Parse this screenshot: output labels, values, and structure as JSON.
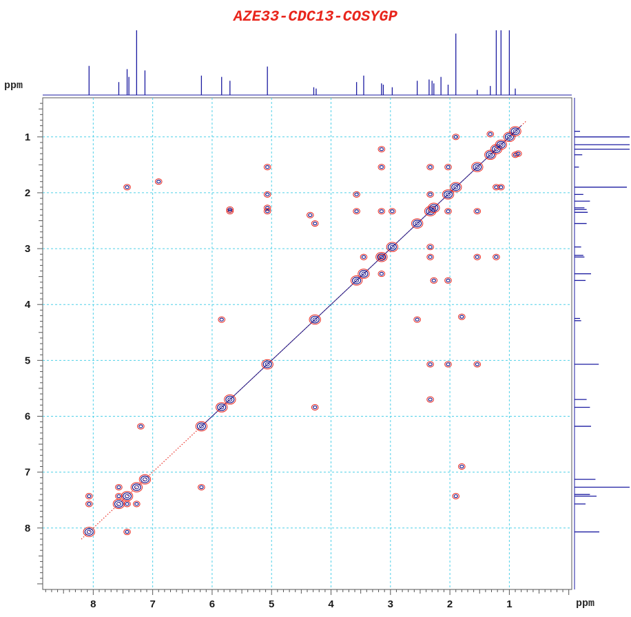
{
  "chart_data": {
    "type": "scatter",
    "title": "AZE33-CDC13-COSYGP",
    "xlabel": "ppm",
    "ylabel": "ppm",
    "xlim": [
      8.85,
      -0.05
    ],
    "ylim": [
      0.3,
      9.1
    ],
    "x_ticks": [
      8,
      7,
      6,
      5,
      4,
      3,
      2,
      1
    ],
    "y_ticks": [
      1,
      2,
      3,
      4,
      5,
      6,
      7,
      8
    ],
    "grid": true,
    "colors": {
      "title": "#e8251c",
      "contour_positive": "#1a1a8c",
      "contour_negative": "#e8251c",
      "grid": "#4dd0e8",
      "spectrum": "#1a1aa0",
      "axis": "#555555"
    },
    "diagonal_peaks": [
      {
        "x": 8.07,
        "y": 8.07
      },
      {
        "x": 7.57,
        "y": 7.57
      },
      {
        "x": 7.43,
        "y": 7.43
      },
      {
        "x": 7.27,
        "y": 7.27
      },
      {
        "x": 7.13,
        "y": 7.13
      },
      {
        "x": 6.18,
        "y": 6.18
      },
      {
        "x": 5.84,
        "y": 5.84
      },
      {
        "x": 5.7,
        "y": 5.7
      },
      {
        "x": 5.07,
        "y": 5.07
      },
      {
        "x": 4.27,
        "y": 4.27
      },
      {
        "x": 3.57,
        "y": 3.57
      },
      {
        "x": 3.45,
        "y": 3.45
      },
      {
        "x": 3.15,
        "y": 3.15
      },
      {
        "x": 2.97,
        "y": 2.97
      },
      {
        "x": 2.55,
        "y": 2.55
      },
      {
        "x": 2.33,
        "y": 2.33
      },
      {
        "x": 2.27,
        "y": 2.27
      },
      {
        "x": 2.03,
        "y": 2.03
      },
      {
        "x": 1.9,
        "y": 1.9
      },
      {
        "x": 1.54,
        "y": 1.54
      },
      {
        "x": 1.32,
        "y": 1.32
      },
      {
        "x": 1.22,
        "y": 1.22
      },
      {
        "x": 1.14,
        "y": 1.14
      },
      {
        "x": 1.0,
        "y": 1.0
      },
      {
        "x": 0.9,
        "y": 0.9
      }
    ],
    "cross_peaks": [
      {
        "x": 8.07,
        "y": 7.43
      },
      {
        "x": 7.43,
        "y": 8.07
      },
      {
        "x": 8.07,
        "y": 7.57
      },
      {
        "x": 7.57,
        "y": 7.43
      },
      {
        "x": 7.43,
        "y": 7.57
      },
      {
        "x": 7.57,
        "y": 7.27
      },
      {
        "x": 7.27,
        "y": 7.57
      },
      {
        "x": 7.2,
        "y": 6.18
      },
      {
        "x": 6.18,
        "y": 7.27
      },
      {
        "x": 6.9,
        "y": 1.8
      },
      {
        "x": 7.43,
        "y": 1.9
      },
      {
        "x": 5.7,
        "y": 2.33
      },
      {
        "x": 5.7,
        "y": 2.3
      },
      {
        "x": 5.84,
        "y": 4.27
      },
      {
        "x": 4.27,
        "y": 5.84
      },
      {
        "x": 5.07,
        "y": 1.54
      },
      {
        "x": 5.07,
        "y": 2.03
      },
      {
        "x": 5.07,
        "y": 2.27
      },
      {
        "x": 5.07,
        "y": 2.33
      },
      {
        "x": 4.27,
        "y": 2.55
      },
      {
        "x": 4.35,
        "y": 2.4
      },
      {
        "x": 3.57,
        "y": 2.03
      },
      {
        "x": 3.57,
        "y": 2.33
      },
      {
        "x": 3.15,
        "y": 1.22
      },
      {
        "x": 3.15,
        "y": 1.54
      },
      {
        "x": 3.15,
        "y": 2.33
      },
      {
        "x": 3.15,
        "y": 3.45
      },
      {
        "x": 3.45,
        "y": 3.15
      },
      {
        "x": 2.97,
        "y": 2.33
      },
      {
        "x": 3.15,
        "y": 3.15
      },
      {
        "x": 2.55,
        "y": 4.27
      },
      {
        "x": 2.33,
        "y": 1.54
      },
      {
        "x": 2.33,
        "y": 2.03
      },
      {
        "x": 2.33,
        "y": 2.97
      },
      {
        "x": 2.33,
        "y": 3.15
      },
      {
        "x": 2.33,
        "y": 5.07
      },
      {
        "x": 2.33,
        "y": 5.7
      },
      {
        "x": 2.27,
        "y": 3.57
      },
      {
        "x": 2.03,
        "y": 2.33
      },
      {
        "x": 2.03,
        "y": 5.07
      },
      {
        "x": 2.03,
        "y": 3.57
      },
      {
        "x": 2.03,
        "y": 1.54
      },
      {
        "x": 1.54,
        "y": 2.33
      },
      {
        "x": 1.54,
        "y": 3.15
      },
      {
        "x": 1.54,
        "y": 5.07
      },
      {
        "x": 1.9,
        "y": 1.0
      },
      {
        "x": 1.8,
        "y": 6.9
      },
      {
        "x": 1.8,
        "y": 4.22
      },
      {
        "x": 1.9,
        "y": 7.43
      },
      {
        "x": 1.22,
        "y": 3.15
      },
      {
        "x": 1.22,
        "y": 1.9
      },
      {
        "x": 1.14,
        "y": 1.9
      },
      {
        "x": 1.32,
        "y": 0.95
      },
      {
        "x": 0.9,
        "y": 1.32
      },
      {
        "x": 0.85,
        "y": 1.3
      }
    ],
    "projection_peaks": [
      {
        "ppm": 8.07,
        "height": 0.45
      },
      {
        "ppm": 7.57,
        "height": 0.2
      },
      {
        "ppm": 7.43,
        "height": 0.4
      },
      {
        "ppm": 7.4,
        "height": 0.28
      },
      {
        "ppm": 7.27,
        "height": 1.0
      },
      {
        "ppm": 7.13,
        "height": 0.38
      },
      {
        "ppm": 6.18,
        "height": 0.3
      },
      {
        "ppm": 5.84,
        "height": 0.28
      },
      {
        "ppm": 5.7,
        "height": 0.22
      },
      {
        "ppm": 5.07,
        "height": 0.44
      },
      {
        "ppm": 4.29,
        "height": 0.12
      },
      {
        "ppm": 4.25,
        "height": 0.1
      },
      {
        "ppm": 3.57,
        "height": 0.2
      },
      {
        "ppm": 3.45,
        "height": 0.3
      },
      {
        "ppm": 3.15,
        "height": 0.18
      },
      {
        "ppm": 3.12,
        "height": 0.16
      },
      {
        "ppm": 2.97,
        "height": 0.12
      },
      {
        "ppm": 2.55,
        "height": 0.22
      },
      {
        "ppm": 2.35,
        "height": 0.24
      },
      {
        "ppm": 2.3,
        "height": 0.22
      },
      {
        "ppm": 2.27,
        "height": 0.18
      },
      {
        "ppm": 2.15,
        "height": 0.28
      },
      {
        "ppm": 2.03,
        "height": 0.16
      },
      {
        "ppm": 1.9,
        "height": 0.95
      },
      {
        "ppm": 1.54,
        "height": 0.08
      },
      {
        "ppm": 1.32,
        "height": 0.14
      },
      {
        "ppm": 1.22,
        "height": 1.0
      },
      {
        "ppm": 1.14,
        "height": 1.0
      },
      {
        "ppm": 1.0,
        "height": 1.0
      },
      {
        "ppm": 0.9,
        "height": 0.1
      }
    ]
  }
}
